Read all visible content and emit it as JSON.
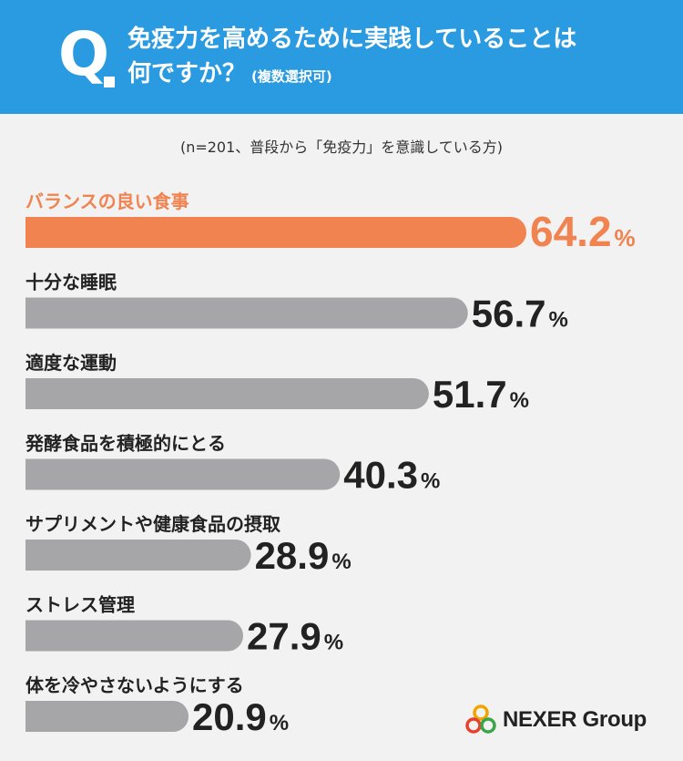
{
  "header": {
    "q_letter": "Q",
    "question_line1": "免疫力を高めるために実践していることは",
    "question_line2": "何ですか？",
    "question_sub": "(複数選択可)"
  },
  "note": "(n=201、普段から「免疫力」を意識している方)",
  "brand": {
    "name": "NEXER Group",
    "highlight_color": "#f0834f",
    "bar_color": "#a6a6a8",
    "header_color": "#2a9be0"
  },
  "chart_data": {
    "type": "bar",
    "orientation": "horizontal",
    "unit": "%",
    "categories": [
      "バランスの良い食事",
      "十分な睡眠",
      "適度な運動",
      "発酵食品を積極的にとる",
      "サプリメントや健康食品の摂取",
      "ストレス管理",
      "体を冷やさないようにする"
    ],
    "values": [
      64.2,
      56.7,
      51.7,
      40.3,
      28.9,
      27.9,
      20.9
    ],
    "value_labels": [
      "64.2",
      "56.7",
      "51.7",
      "40.3",
      "28.9",
      "27.9",
      "20.9"
    ],
    "highlight_index": 0
  }
}
